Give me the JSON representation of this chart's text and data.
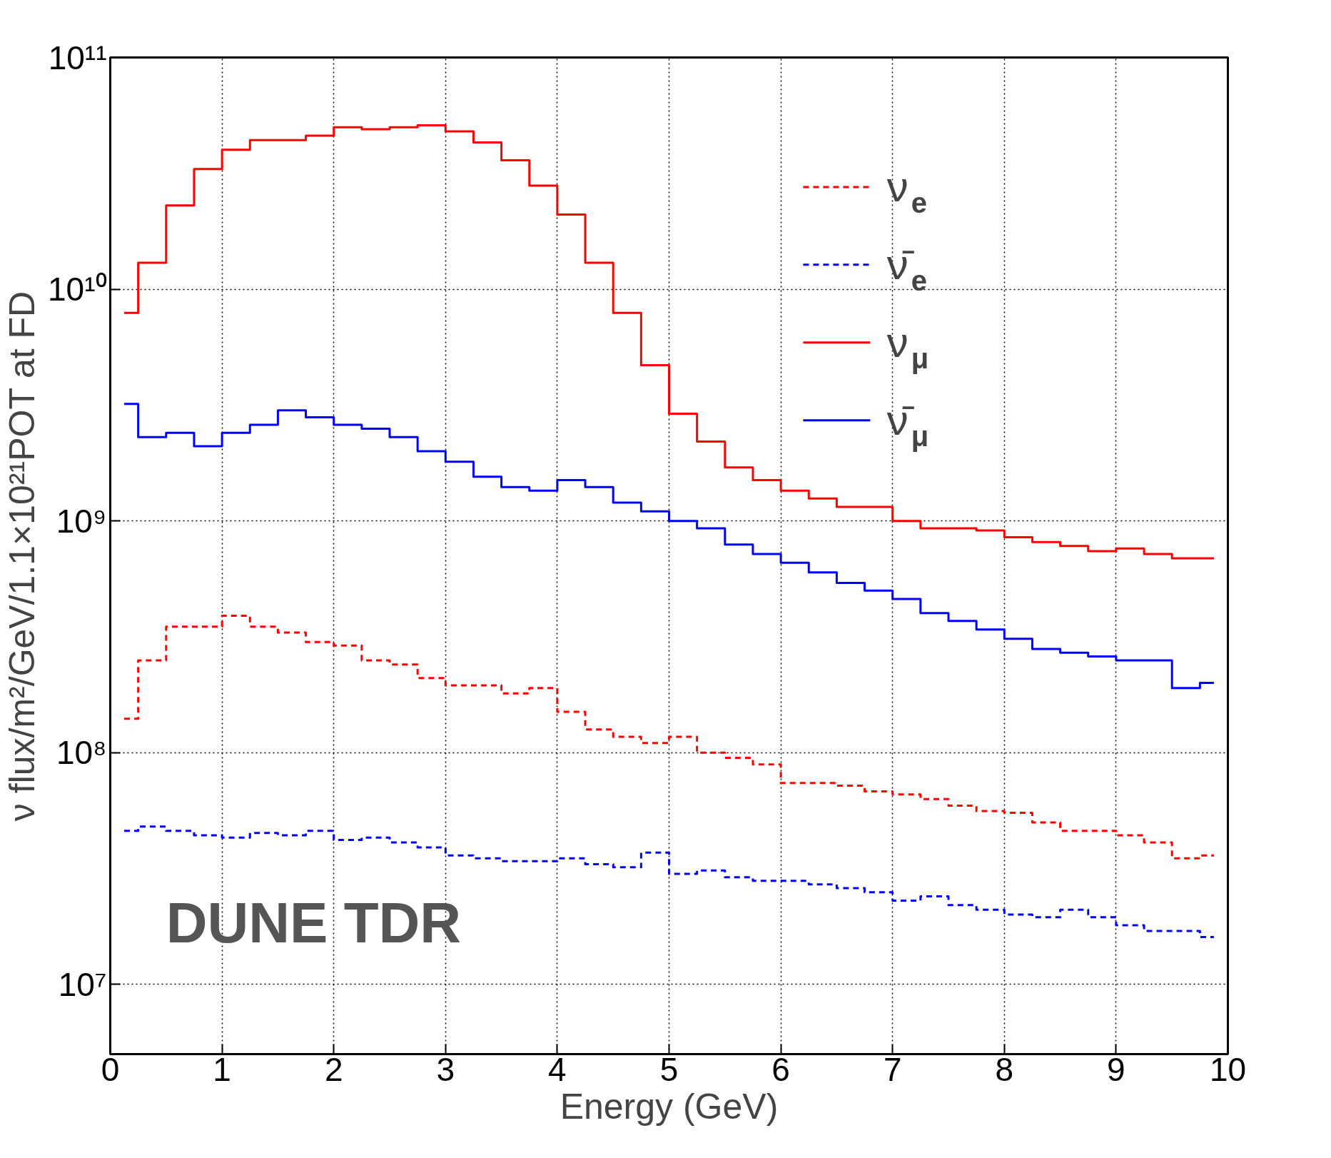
{
  "chart_data": {
    "type": "step",
    "xlabel": "Energy (GeV)",
    "ylabel": "ν flux/m²/GeV/1.1×10²¹POT at FD",
    "x": [
      0.125,
      0.375,
      0.625,
      0.875,
      1.125,
      1.375,
      1.625,
      1.875,
      2.125,
      2.375,
      2.625,
      2.875,
      3.125,
      3.375,
      3.625,
      3.875,
      4.125,
      4.375,
      4.625,
      4.875,
      5.125,
      5.375,
      5.625,
      5.875,
      6.125,
      6.375,
      6.625,
      6.875,
      7.125,
      7.375,
      7.625,
      7.875,
      8.125,
      8.375,
      8.625,
      8.875,
      9.125,
      9.375,
      9.625,
      9.875
    ],
    "series": [
      {
        "name": "ν$_{e}$",
        "color": "#ff0000",
        "line_style": "dashed",
        "values": [
          140000000.0,
          250000000.0,
          350000000.0,
          350000000.0,
          390000000.0,
          350000000.0,
          330000000.0,
          300000000.0,
          290000000.0,
          250000000.0,
          240000000.0,
          210000000.0,
          195000000.0,
          195000000.0,
          180000000.0,
          190000000.0,
          150000000.0,
          126000000.0,
          117000000.0,
          110000000.0,
          117000000.0,
          100000000.0,
          95000000.0,
          89000000.0,
          74000000.0,
          74000000.0,
          72000000.0,
          68000000.0,
          66000000.0,
          63000000.0,
          59000000.0,
          56000000.0,
          55000000.0,
          50000000.0,
          46000000.0,
          46000000.0,
          44000000.0,
          41000000.0,
          35000000.0,
          36000000.0
        ]
      },
      {
        "name": "ν̄$_{e}$",
        "color": "#0000ff",
        "line_style": "dashed",
        "values": [
          46000000.0,
          48000000.0,
          46000000.0,
          44000000.0,
          43000000.0,
          45000000.0,
          44000000.0,
          46000000.0,
          42000000.0,
          43000000.0,
          41000000.0,
          39000000.0,
          36000000.0,
          35000000.0,
          34000000.0,
          34000000.0,
          35000000.0,
          33000000.0,
          32000000.0,
          37000000.0,
          30000000.0,
          31000000.0,
          29000000.0,
          28000000.0,
          28000000.0,
          27000000.0,
          26000000.0,
          25000000.0,
          23000000.0,
          24000000.0,
          22000000.0,
          21000000.0,
          20000000.0,
          19500000.0,
          21000000.0,
          19500000.0,
          18000000.0,
          17000000.0,
          17000000.0,
          16000000.0
        ]
      },
      {
        "name": "ν$_{μ}$",
        "color": "#ff0000",
        "line_style": "solid",
        "values": [
          7900000000.0,
          13000000000.0,
          23000000000.0,
          33000000000.0,
          40000000000.0,
          44000000000.0,
          44000000000.0,
          46000000000.0,
          50000000000.0,
          49000000000.0,
          50000000000.0,
          51000000000.0,
          48000000000.0,
          43000000000.0,
          36000000000.0,
          28000000000.0,
          21000000000.0,
          13000000000.0,
          7900000000.0,
          4700000000.0,
          2900000000.0,
          2200000000.0,
          1700000000.0,
          1500000000.0,
          1350000000.0,
          1250000000.0,
          1150000000.0,
          1150000000.0,
          1000000000.0,
          930000000.0,
          930000000.0,
          910000000.0,
          850000000.0,
          810000000.0,
          780000000.0,
          740000000.0,
          760000000.0,
          720000000.0,
          690000000.0,
          690000000.0
        ]
      },
      {
        "name": "ν̄$_{μ}$",
        "color": "#0000ff",
        "line_style": "solid",
        "values": [
          3200000000.0,
          2300000000.0,
          2400000000.0,
          2100000000.0,
          2400000000.0,
          2600000000.0,
          3000000000.0,
          2800000000.0,
          2600000000.0,
          2500000000.0,
          2300000000.0,
          2000000000.0,
          1800000000.0,
          1550000000.0,
          1400000000.0,
          1350000000.0,
          1500000000.0,
          1400000000.0,
          1200000000.0,
          1100000000.0,
          1000000000.0,
          930000000.0,
          790000000.0,
          720000000.0,
          660000000.0,
          600000000.0,
          540000000.0,
          500000000.0,
          460000000.0,
          400000000.0,
          370000000.0,
          340000000.0,
          310000000.0,
          280000000.0,
          270000000.0,
          260000000.0,
          250000000.0,
          250000000.0,
          190000000.0,
          200000000.0
        ]
      }
    ],
    "xlim": [
      0,
      10
    ],
    "xticks": [
      0,
      1,
      2,
      3,
      4,
      5,
      6,
      7,
      8,
      9,
      10
    ],
    "ylim": [
      5000000.0,
      100000000000.0
    ],
    "yticks": [
      {
        "value": 10000000.0,
        "label": "10⁷"
      },
      {
        "value": 100000000.0,
        "label": "10⁸"
      },
      {
        "value": 1000000000.0,
        "label": "10⁹"
      },
      {
        "value": 10000000000.0,
        "label": "10¹⁰"
      },
      {
        "value": 100000000000.0,
        "label": "10¹¹"
      }
    ],
    "log": "y",
    "grid": true,
    "legend": "top right",
    "annotations": [
      "DUNE TDR"
    ]
  }
}
